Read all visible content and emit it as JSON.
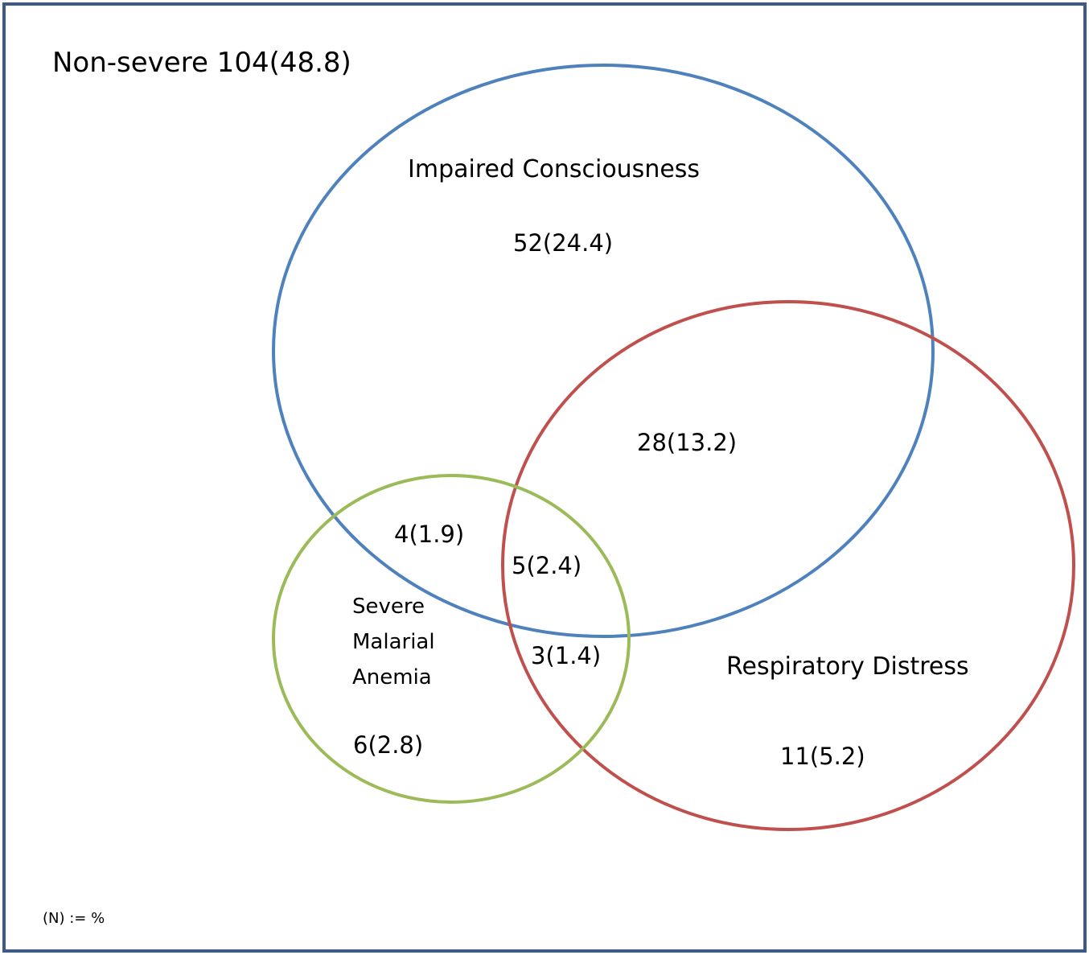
{
  "outside": {
    "label": "Non-severe 104(48.8)"
  },
  "sets": [
    {
      "name": "Impaired Consciousness",
      "color": "#4f81bd"
    },
    {
      "name": "Respiratory Distress",
      "color": "#c0504d"
    },
    {
      "name": "Severe Malarial Anemia",
      "label_lines": [
        "Severe",
        "Malarial",
        "Anemia"
      ],
      "color": "#9bbb59"
    }
  ],
  "regions": {
    "ic_only": "52(24.4)",
    "ic_rd": "28(13.2)",
    "ic_sma": "4(1.9)",
    "ic_rd_sma": "5(2.4)",
    "rd_sma": "3(1.4)",
    "sma_only": "6(2.8)",
    "rd_only": "11(5.2)"
  },
  "note": "(N) := %",
  "colors": {
    "frame": "#3b5b86"
  }
}
